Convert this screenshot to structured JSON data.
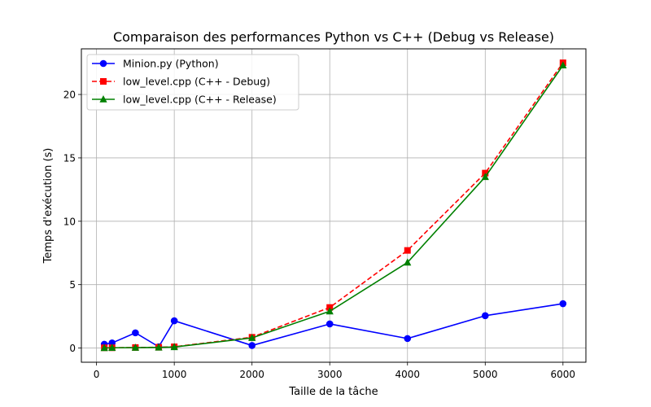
{
  "chart_data": {
    "type": "line",
    "title": "Comparaison des performances Python vs C++ (Debug vs Release)",
    "xlabel": "Taille de la tâche",
    "ylabel": "Temps d'exécution (s)",
    "x": [
      100,
      200,
      500,
      800,
      1000,
      2000,
      3000,
      4000,
      5000,
      6000
    ],
    "xlim": [
      -195,
      6295
    ],
    "ylim": [
      -1.12,
      23.6
    ],
    "xticks": [
      0,
      1000,
      2000,
      3000,
      4000,
      5000,
      6000
    ],
    "xtick_labels": [
      "0",
      "1000",
      "2000",
      "3000",
      "4000",
      "5000",
      "6000"
    ],
    "yticks": [
      0,
      5,
      10,
      15,
      20
    ],
    "ytick_labels": [
      "0",
      "5",
      "10",
      "15",
      "20"
    ],
    "grid": true,
    "legend_position": "top-left",
    "series": [
      {
        "name": "Minion.py (Python)",
        "color": "#0000ff",
        "marker": "circle",
        "linestyle": "solid",
        "values": [
          0.3,
          0.4,
          1.2,
          0.1,
          2.15,
          0.2,
          1.9,
          0.75,
          2.55,
          3.5
        ]
      },
      {
        "name": "low_level.cpp (C++ - Debug)",
        "color": "#ff0000",
        "marker": "square",
        "linestyle": "dashed",
        "values": [
          0.02,
          0.02,
          0.04,
          0.06,
          0.1,
          0.85,
          3.2,
          7.7,
          13.8,
          22.5
        ]
      },
      {
        "name": "low_level.cpp (C++ - Release)",
        "color": "#008000",
        "marker": "triangle",
        "linestyle": "solid",
        "values": [
          0.01,
          0.02,
          0.03,
          0.05,
          0.08,
          0.8,
          2.9,
          6.75,
          13.5,
          22.3
        ]
      }
    ]
  }
}
